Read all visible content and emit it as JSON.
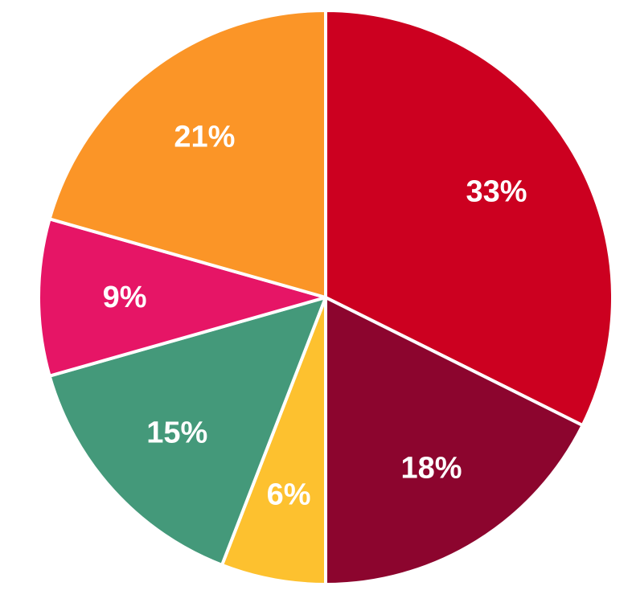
{
  "chart_data": {
    "type": "pie",
    "start_angle_deg": 0,
    "direction": "clockwise",
    "slices": [
      {
        "label": "33%",
        "value": 33,
        "color": "#cc0020"
      },
      {
        "label": "18%",
        "value": 18,
        "color": "#8c052e"
      },
      {
        "label": "6%",
        "value": 6,
        "color": "#fdc12f"
      },
      {
        "label": "15%",
        "value": 15,
        "color": "#44997a"
      },
      {
        "label": "9%",
        "value": 9,
        "color": "#e61566"
      },
      {
        "label": "21%",
        "value": 21,
        "color": "#fb9527"
      }
    ]
  }
}
